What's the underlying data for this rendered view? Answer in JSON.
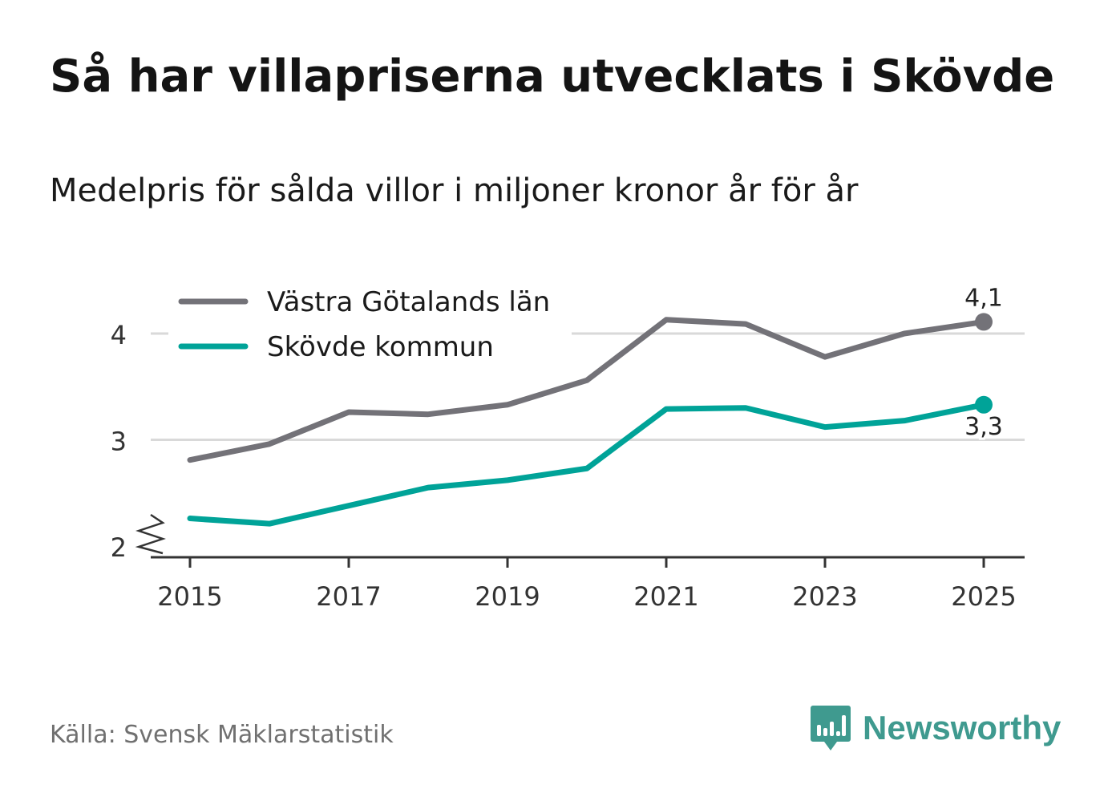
{
  "title": "Så har villapriserna utvecklats i Skövde",
  "subtitle": "Medelpris för sålda villor i miljoner kronor år för år",
  "source": "Källa: Svensk Mäklarstatistik",
  "brand": "Newsworthy",
  "colors": {
    "vastra": "#737278",
    "skovde": "#00a398",
    "grid": "#d9d9d9",
    "axis": "#333333",
    "brand": "#3f9a8f"
  },
  "chart_data": {
    "type": "line",
    "x": [
      2015,
      2016,
      2017,
      2018,
      2019,
      2020,
      2021,
      2022,
      2023,
      2024,
      2025
    ],
    "xticks": [
      "2015",
      "2017",
      "2019",
      "2021",
      "2023",
      "2025"
    ],
    "yticks": [
      "2",
      "3",
      "4"
    ],
    "ylim": [
      1.9,
      4.3
    ],
    "axis_break": true,
    "series": [
      {
        "name": "Västra Götalands län",
        "color": "#737278",
        "values": [
          2.81,
          2.96,
          3.26,
          3.24,
          3.33,
          3.56,
          4.13,
          4.09,
          3.78,
          4.0,
          4.11
        ],
        "end_label": "4,1",
        "end_label_position": "above"
      },
      {
        "name": "Skövde kommun",
        "color": "#00a398",
        "values": [
          2.26,
          2.21,
          2.38,
          2.55,
          2.62,
          2.73,
          3.29,
          3.3,
          3.12,
          3.18,
          3.33
        ],
        "end_label": "3,3",
        "end_label_position": "below"
      }
    ],
    "legend": "top-left"
  }
}
